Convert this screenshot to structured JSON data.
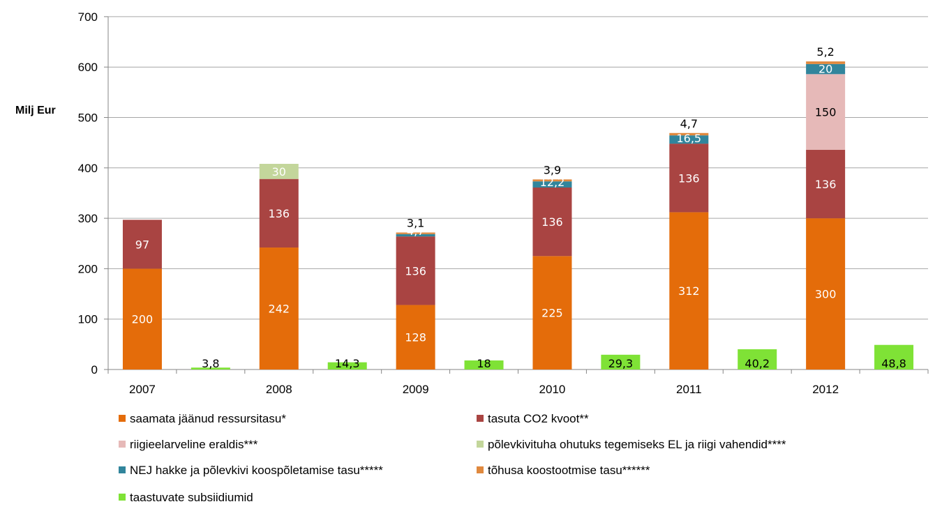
{
  "chart_data": {
    "type": "bar",
    "ylabel": "Milj Eur",
    "ylim": [
      0,
      700
    ],
    "yticks": [
      0,
      100,
      200,
      300,
      400,
      500,
      600,
      700
    ],
    "grid": true,
    "legend_position": "bottom",
    "years": [
      "2007",
      "2008",
      "2009",
      "2010",
      "2011",
      "2012"
    ],
    "stacked_series": [
      {
        "key": "ressurss",
        "name": "saamata jäänud ressursitasu*",
        "color": "#E46C0A",
        "values": [
          200,
          242,
          128,
          225,
          312,
          300
        ],
        "labels": [
          "200",
          "242",
          "128",
          "225",
          "312",
          "300"
        ]
      },
      {
        "key": "co2",
        "name": "tasuta CO2 kvoot**",
        "color": "#A94442",
        "values": [
          97,
          136,
          136,
          136,
          136,
          136
        ],
        "labels": [
          "97",
          "136",
          "136",
          "136",
          "136",
          "136"
        ]
      },
      {
        "key": "riigi",
        "name": "riigieelarveline eraldis***",
        "color": "#E6B9B8",
        "values": [
          0,
          0,
          0,
          0,
          0,
          150
        ],
        "labels": [
          "",
          "",
          "",
          "",
          "",
          "150"
        ]
      },
      {
        "key": "polevkivituha",
        "name": "põlevkivituha ohutuks tegemiseks EL ja riigi vahendid****",
        "color": "#C3D69B",
        "values": [
          0,
          30,
          0,
          0,
          0,
          0
        ],
        "labels": [
          "",
          "30",
          "",
          "",
          "",
          ""
        ]
      },
      {
        "key": "nej",
        "name": "NEJ hakke ja põlevkivi koospõletamise tasu*****",
        "color": "#31859C",
        "values": [
          0,
          0,
          4.7,
          12.2,
          16.5,
          20
        ],
        "labels": [
          "",
          "",
          "4,7",
          "12,2",
          "16,5",
          "20"
        ]
      },
      {
        "key": "tohusa",
        "name": "tõhusa koostootmise tasu******",
        "color": "#E0893E",
        "values": [
          0,
          0,
          3.1,
          3.9,
          4.7,
          5.2
        ],
        "labels": [
          "",
          "",
          "3,1",
          "3,9",
          "4,7",
          "5,2"
        ]
      }
    ],
    "renewable_series": {
      "key": "taastuvad",
      "name": "taastuvate subsiidiumid",
      "color": "#7FE236",
      "values": [
        3.8,
        14.3,
        18,
        29.3,
        40.2,
        48.8
      ],
      "labels": [
        "3,8",
        "14,3",
        "18",
        "29,3",
        "40,2",
        "48,8"
      ]
    },
    "legend": [
      {
        "text": "saamata jäänud ressursitasu*",
        "color": "#E46C0A"
      },
      {
        "text": "tasuta CO2 kvoot**",
        "color": "#A94442"
      },
      {
        "text": "riigieelarveline eraldis***",
        "color": "#E6B9B8"
      },
      {
        "text": "põlevkivituha ohutuks tegemiseks EL ja riigi vahendid****",
        "color": "#C3D69B"
      },
      {
        "text": "NEJ hakke ja põlevkivi koospõletamise tasu*****",
        "color": "#31859C"
      },
      {
        "text": "tõhusa koostootmise tasu******",
        "color": "#E0893E"
      },
      {
        "text": "taastuvate subsiidiumid",
        "color": "#7FE236"
      }
    ]
  }
}
